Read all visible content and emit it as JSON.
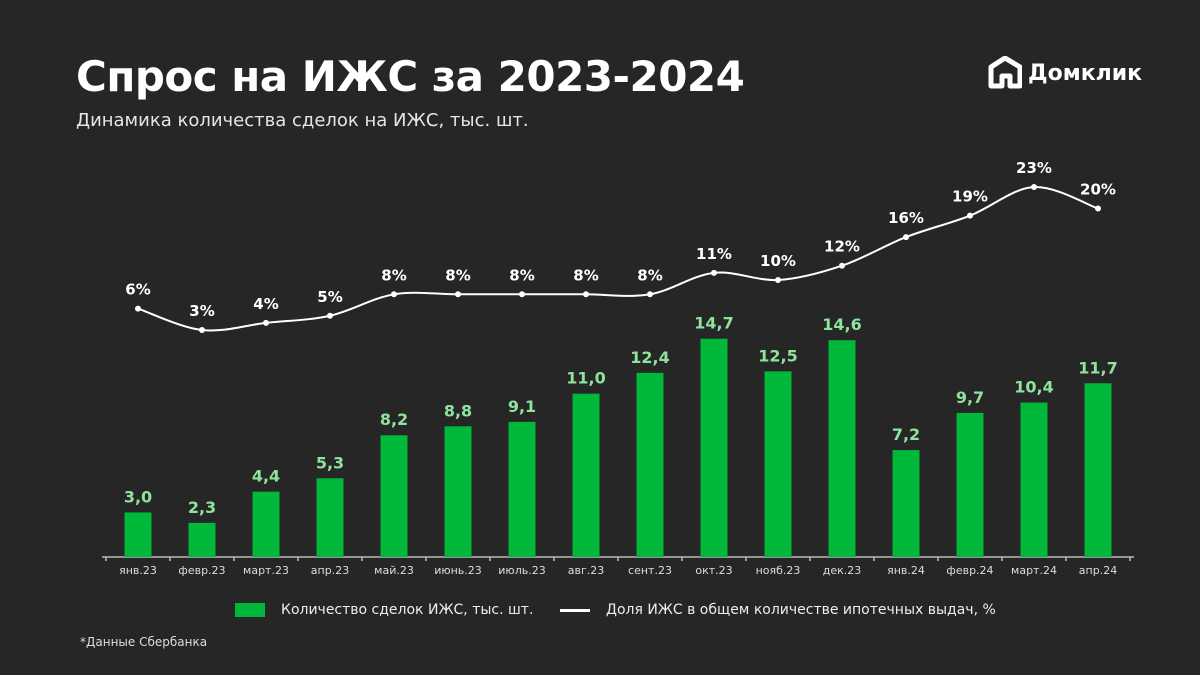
{
  "title": "Спрос на ИЖС за 2023-2024",
  "subtitle": "Динамика количества сделок на ИЖС, тыс. шт.",
  "logo_text": "Домклик",
  "footnote": "*Данные Сбербанка",
  "colors": {
    "background": "#262626",
    "bar": "#00b83a",
    "bar_label": "#8ee39d",
    "line": "#ffffff"
  },
  "chart_data": {
    "type": "bar+line",
    "categories": [
      "янв.23",
      "февр.23",
      "март.23",
      "апр.23",
      "май.23",
      "июнь.23",
      "июль.23",
      "авг.23",
      "сент.23",
      "окт.23",
      "нояб.23",
      "дек.23",
      "янв.24",
      "февр.24",
      "март.24",
      "апр.24"
    ],
    "series": [
      {
        "name": "Количество сделок ИЖС, тыс. шт.",
        "type": "bar",
        "values": [
          3.0,
          2.3,
          4.4,
          5.3,
          8.2,
          8.8,
          9.1,
          11.0,
          12.4,
          14.7,
          12.5,
          14.6,
          7.2,
          9.7,
          10.4,
          11.7
        ],
        "labels": [
          "3,0",
          "2,3",
          "4,4",
          "5,3",
          "8,2",
          "8,8",
          "9,1",
          "11,0",
          "12,4",
          "14,7",
          "12,5",
          "14,6",
          "7,2",
          "9,7",
          "10,4",
          "11,7"
        ]
      },
      {
        "name": "Доля ИЖС в общем количестве ипотечных выдач, %",
        "type": "line",
        "values": [
          6,
          3,
          4,
          5,
          8,
          8,
          8,
          8,
          8,
          11,
          10,
          12,
          16,
          19,
          23,
          20
        ],
        "labels": [
          "6%",
          "3%",
          "4%",
          "5%",
          "8%",
          "8%",
          "8%",
          "8%",
          "8%",
          "11%",
          "10%",
          "12%",
          "16%",
          "19%",
          "23%",
          "20%"
        ]
      }
    ],
    "legend": "bottom",
    "grid": false
  }
}
